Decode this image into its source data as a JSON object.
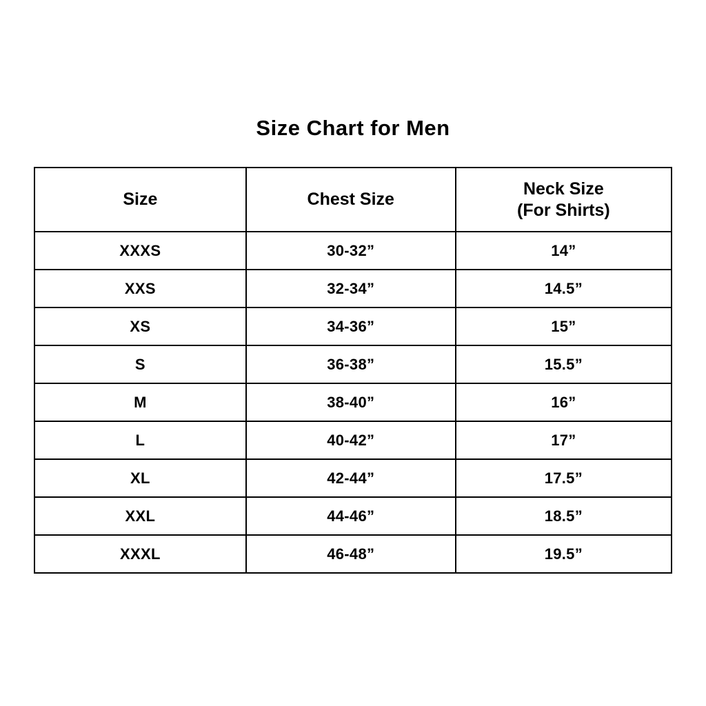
{
  "page": {
    "title": "Size Chart for Men"
  },
  "chart_data": {
    "type": "table",
    "title": "Size Chart for Men",
    "columns": [
      {
        "line1": "Size",
        "line2": ""
      },
      {
        "line1": "Chest Size",
        "line2": ""
      },
      {
        "line1": "Neck Size",
        "line2": "(For Shirts)"
      }
    ],
    "rows": [
      [
        "XXXS",
        "30-32”",
        "14”"
      ],
      [
        "XXS",
        "32-34”",
        "14.5”"
      ],
      [
        "XS",
        "34-36”",
        "15”"
      ],
      [
        "S",
        "36-38”",
        "15.5”"
      ],
      [
        "M",
        "38-40”",
        "16”"
      ],
      [
        "L",
        "40-42”",
        "17”"
      ],
      [
        "XL",
        "42-44”",
        "17.5”"
      ],
      [
        "XXL",
        "44-46”",
        "18.5”"
      ],
      [
        "XXXL",
        "46-48”",
        "19.5”"
      ]
    ],
    "layout": {
      "border_color": "#000000",
      "background": "#ffffff",
      "text_color": "#000000",
      "grid": true
    }
  }
}
